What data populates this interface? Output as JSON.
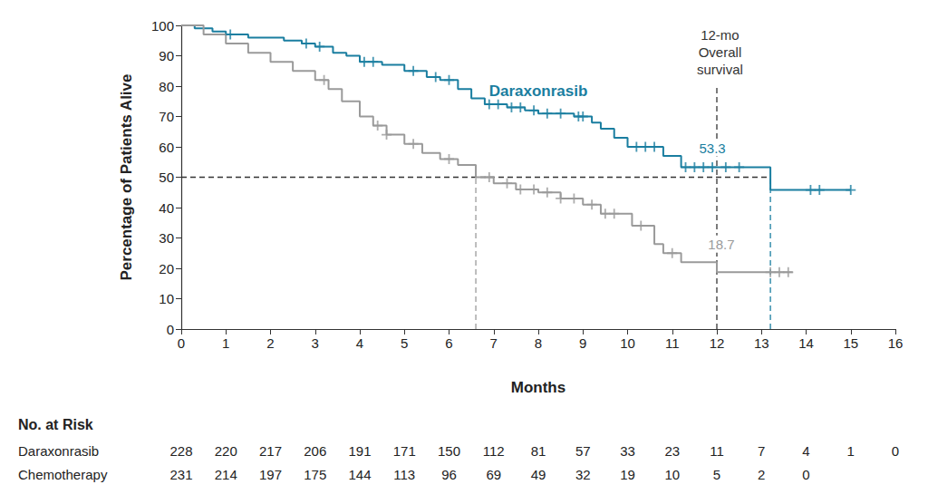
{
  "chart_data": {
    "type": "line",
    "line_style": "step",
    "grid": false,
    "x_label": "Months",
    "y_label": "Percentage of Patients Alive",
    "xlim": [
      0,
      16
    ],
    "xticks": [
      0,
      1,
      2,
      3,
      4,
      5,
      6,
      7,
      8,
      9,
      10,
      11,
      12,
      13,
      14,
      15,
      16
    ],
    "ylim": [
      0,
      100
    ],
    "yticks": [
      0,
      10,
      20,
      30,
      40,
      50,
      60,
      70,
      80,
      90,
      100
    ],
    "series": [
      {
        "name": "Daraxonrasib",
        "color": "#1a7ea0",
        "marker": "plus",
        "x": [
          0,
          0.3,
          0.7,
          1.0,
          1.5,
          2.3,
          2.7,
          3.0,
          3.4,
          3.7,
          4.0,
          4.5,
          5.0,
          5.5,
          5.8,
          6.2,
          6.5,
          6.8,
          7.3,
          7.7,
          8.0,
          8.8,
          9.2,
          9.4,
          9.7,
          10.0,
          10.8,
          11.2,
          13.2,
          15.0
        ],
        "values": [
          100,
          99,
          98,
          97,
          96,
          95,
          94,
          93,
          91,
          90,
          88,
          87,
          85,
          83,
          82,
          79,
          76,
          74,
          73,
          72,
          71,
          70,
          68,
          66,
          63,
          60,
          57,
          53.3,
          45.8,
          45.8
        ],
        "censored_x": [
          1.1,
          2.8,
          3.1,
          4.1,
          4.3,
          5.2,
          5.7,
          6.0,
          6.9,
          7.1,
          7.4,
          7.6,
          7.9,
          8.2,
          8.5,
          8.9,
          9.0,
          10.2,
          10.4,
          10.6,
          11.3,
          11.5,
          11.7,
          11.9,
          12.2,
          12.5,
          14.1,
          14.3,
          15.0
        ],
        "censored_values": [
          97,
          94,
          93,
          88,
          88,
          85,
          83,
          82,
          74,
          74,
          73,
          73,
          72,
          71,
          71,
          70,
          70,
          60,
          60,
          60,
          53.3,
          53.3,
          53.3,
          53.3,
          53.3,
          53.3,
          45.8,
          45.8,
          45.8
        ]
      },
      {
        "name": "Chemotherapy",
        "color": "#9a9a9a",
        "marker": "plus",
        "x": [
          0,
          0.5,
          1.0,
          1.5,
          2.0,
          2.5,
          3.0,
          3.3,
          3.6,
          4.0,
          4.3,
          4.6,
          5.0,
          5.4,
          5.8,
          6.2,
          6.6,
          7.0,
          7.5,
          8.0,
          8.5,
          9.0,
          9.4,
          10.1,
          10.6,
          10.8,
          11.2,
          12.0,
          13.7
        ],
        "values": [
          100,
          97,
          94,
          91,
          88,
          85,
          82,
          79,
          75,
          70,
          67,
          64,
          61,
          58,
          56,
          54,
          50,
          48,
          46,
          45,
          43,
          41,
          38,
          34,
          28,
          25,
          22,
          18.7,
          18.7
        ],
        "censored_x": [
          3.2,
          4.4,
          4.6,
          5.2,
          6.0,
          6.9,
          7.3,
          7.6,
          7.9,
          8.2,
          8.5,
          8.8,
          9.2,
          9.5,
          9.7,
          10.3,
          11.0,
          13.2,
          13.4,
          13.6
        ],
        "censored_values": [
          82,
          67,
          64,
          61,
          56,
          50,
          48,
          46,
          46,
          45,
          43,
          43,
          41,
          38,
          38,
          34,
          25,
          18.7,
          18.7,
          18.7
        ]
      }
    ],
    "reference_lines": [
      {
        "x": [
          0,
          13.2
        ],
        "values": [
          50,
          50
        ],
        "color": "#333333"
      },
      {
        "x": [
          6.6,
          6.6
        ],
        "values": [
          0,
          50
        ],
        "color": "#9a9a9a"
      },
      {
        "x": [
          13.2,
          13.2
        ],
        "values": [
          0,
          50
        ],
        "color": "#1a7ea0"
      },
      {
        "x": [
          12,
          12
        ],
        "values": [
          0,
          80
        ],
        "color": "#333333"
      }
    ],
    "annotations": [
      {
        "text": "Daraxonrasib",
        "x": 8.0,
        "y": 78.5,
        "color": "#1a7ea0",
        "bold": true
      },
      {
        "text": "53.3",
        "x": 11.9,
        "y": 59.7,
        "color": "#1a7ea0",
        "bold": false
      },
      {
        "text": "18.7",
        "x": 12.1,
        "y": 28,
        "color": "#9a9a9a",
        "bold": false
      },
      {
        "text": "12-mo Overall survival",
        "x": 12.07,
        "y": 91.3,
        "color": "#333333",
        "bold": false
      }
    ],
    "risk_table": {
      "title": "No. at Risk",
      "times": [
        0,
        1,
        2,
        3,
        4,
        5,
        6,
        7,
        8,
        9,
        10,
        11,
        12,
        13,
        14,
        15,
        16
      ],
      "rows": [
        {
          "name": "Daraxonrasib",
          "values": [
            228,
            220,
            217,
            206,
            191,
            171,
            150,
            112,
            81,
            57,
            33,
            23,
            11,
            7,
            4,
            1,
            0
          ]
        },
        {
          "name": "Chemotherapy",
          "values": [
            231,
            214,
            197,
            175,
            144,
            113,
            96,
            69,
            49,
            32,
            19,
            10,
            5,
            2,
            0,
            null,
            null
          ]
        }
      ]
    }
  }
}
